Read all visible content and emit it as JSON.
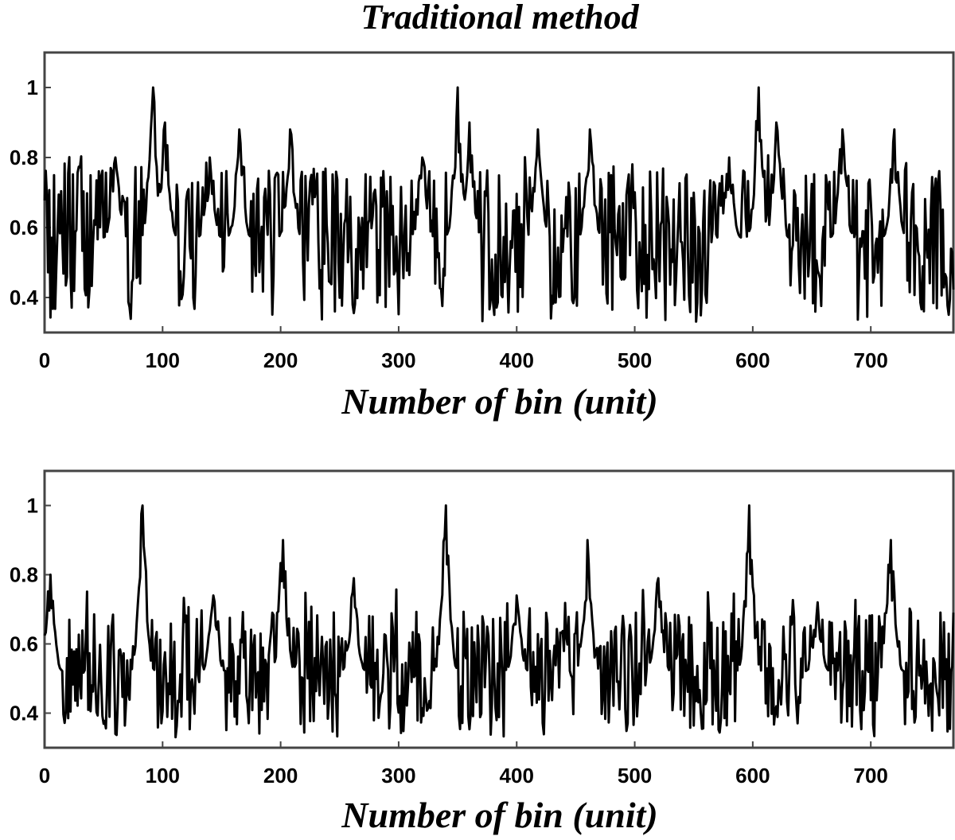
{
  "chart_data": [
    {
      "type": "line",
      "title": "Traditional method",
      "xlabel": "Number of bin (unit)",
      "ylabel": "",
      "xlim": [
        0,
        770
      ],
      "ylim": [
        0.3,
        1.1
      ],
      "xticks": [
        0,
        100,
        200,
        300,
        400,
        500,
        600,
        700
      ],
      "yticks": [
        0.4,
        0.6,
        0.8,
        1
      ],
      "ytick_labels": [
        "0.4",
        "0.6",
        "0.8",
        "1"
      ],
      "grid": false,
      "line_color": "#000000",
      "noise_center": 0.57,
      "noise_low": 0.33,
      "noise_high": 0.72,
      "peaks": [
        {
          "x": 92,
          "y": 1.0
        },
        {
          "x": 350,
          "y": 1.0
        },
        {
          "x": 605,
          "y": 1.0
        },
        {
          "x": 102,
          "y": 0.9
        },
        {
          "x": 165,
          "y": 0.88
        },
        {
          "x": 208,
          "y": 0.88
        },
        {
          "x": 360,
          "y": 0.9
        },
        {
          "x": 418,
          "y": 0.88
        },
        {
          "x": 462,
          "y": 0.88
        },
        {
          "x": 620,
          "y": 0.9
        },
        {
          "x": 676,
          "y": 0.88
        },
        {
          "x": 720,
          "y": 0.88
        },
        {
          "x": 60,
          "y": 0.8
        },
        {
          "x": 140,
          "y": 0.8
        },
        {
          "x": 320,
          "y": 0.8
        },
        {
          "x": 580,
          "y": 0.8
        }
      ]
    },
    {
      "type": "line",
      "title": "",
      "xlabel": "Number of bin (unit)",
      "ylabel": "",
      "xlim": [
        0,
        770
      ],
      "ylim": [
        0.3,
        1.1
      ],
      "xticks": [
        0,
        100,
        200,
        300,
        400,
        500,
        600,
        700
      ],
      "yticks": [
        0.4,
        0.6,
        0.8,
        1
      ],
      "ytick_labels": [
        "0.4",
        "0.6",
        "0.8",
        "1"
      ],
      "grid": false,
      "line_color": "#000000",
      "noise_center": 0.52,
      "noise_low": 0.33,
      "noise_high": 0.66,
      "peaks": [
        {
          "x": 83,
          "y": 1.0
        },
        {
          "x": 340,
          "y": 1.0
        },
        {
          "x": 597,
          "y": 1.0
        },
        {
          "x": 202,
          "y": 0.9
        },
        {
          "x": 460,
          "y": 0.9
        },
        {
          "x": 717,
          "y": 0.9
        },
        {
          "x": 5,
          "y": 0.8
        },
        {
          "x": 262,
          "y": 0.79
        },
        {
          "x": 520,
          "y": 0.79
        },
        {
          "x": 143,
          "y": 0.74
        },
        {
          "x": 400,
          "y": 0.74
        },
        {
          "x": 655,
          "y": 0.72
        }
      ]
    }
  ]
}
